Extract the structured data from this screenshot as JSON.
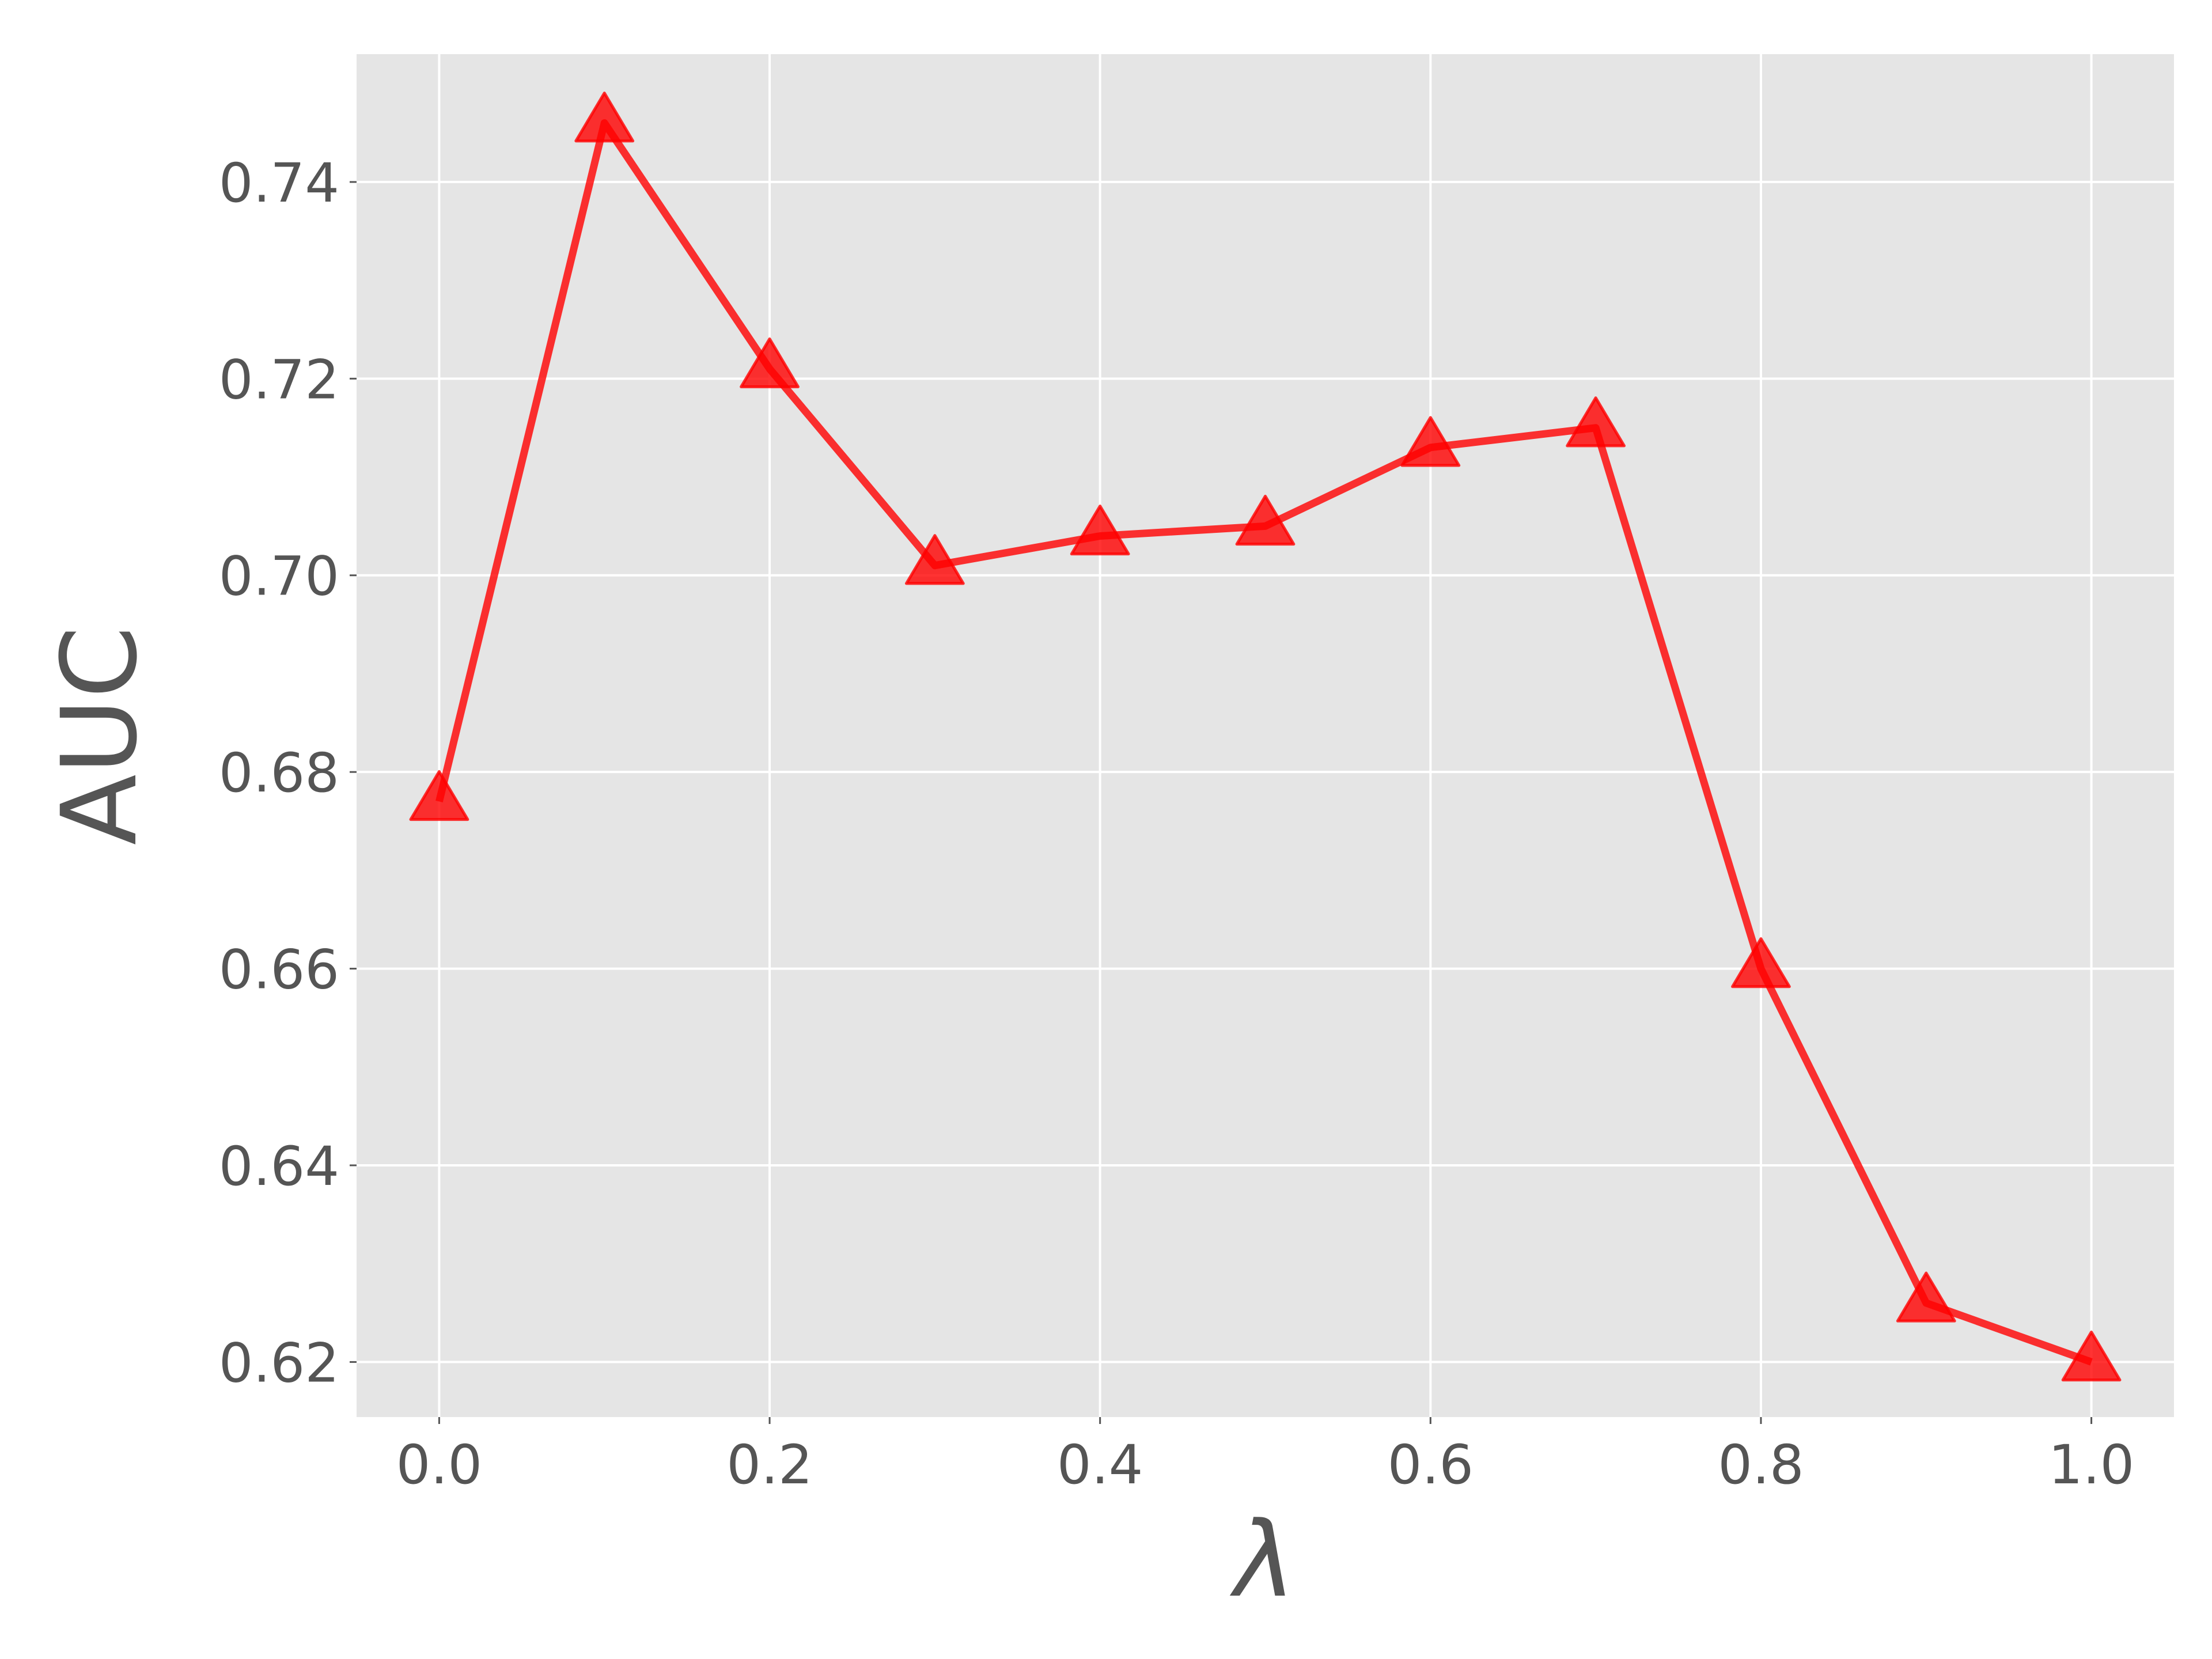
{
  "chart_data": {
    "type": "line",
    "x_label": "λ",
    "y_label": "AUC",
    "x": [
      0,
      0.1,
      0.2,
      0.3,
      0.4,
      0.5,
      0.6,
      0.7,
      0.8,
      0.9,
      1
    ],
    "series": [
      {
        "color": "#ff0000",
        "values": [
          0.677,
          0.746,
          0.721,
          0.701,
          0.704,
          0.705,
          0.713,
          0.715,
          0.66,
          0.626,
          0.62
        ]
      }
    ],
    "xlim": [
      -0.05,
      1.05
    ],
    "ylim": [
      0.6144,
      0.753
    ],
    "xticks": [
      {
        "value": 0,
        "label": "0.0"
      },
      0.2,
      0.4,
      0.6,
      0.8,
      {
        "value": 1,
        "label": "1.0"
      }
    ],
    "yticks": [
      0.62,
      0.64,
      0.66,
      0.68,
      {
        "value": 0.7,
        "label": "0.70"
      },
      0.72,
      0.74
    ],
    "grid": true
  }
}
